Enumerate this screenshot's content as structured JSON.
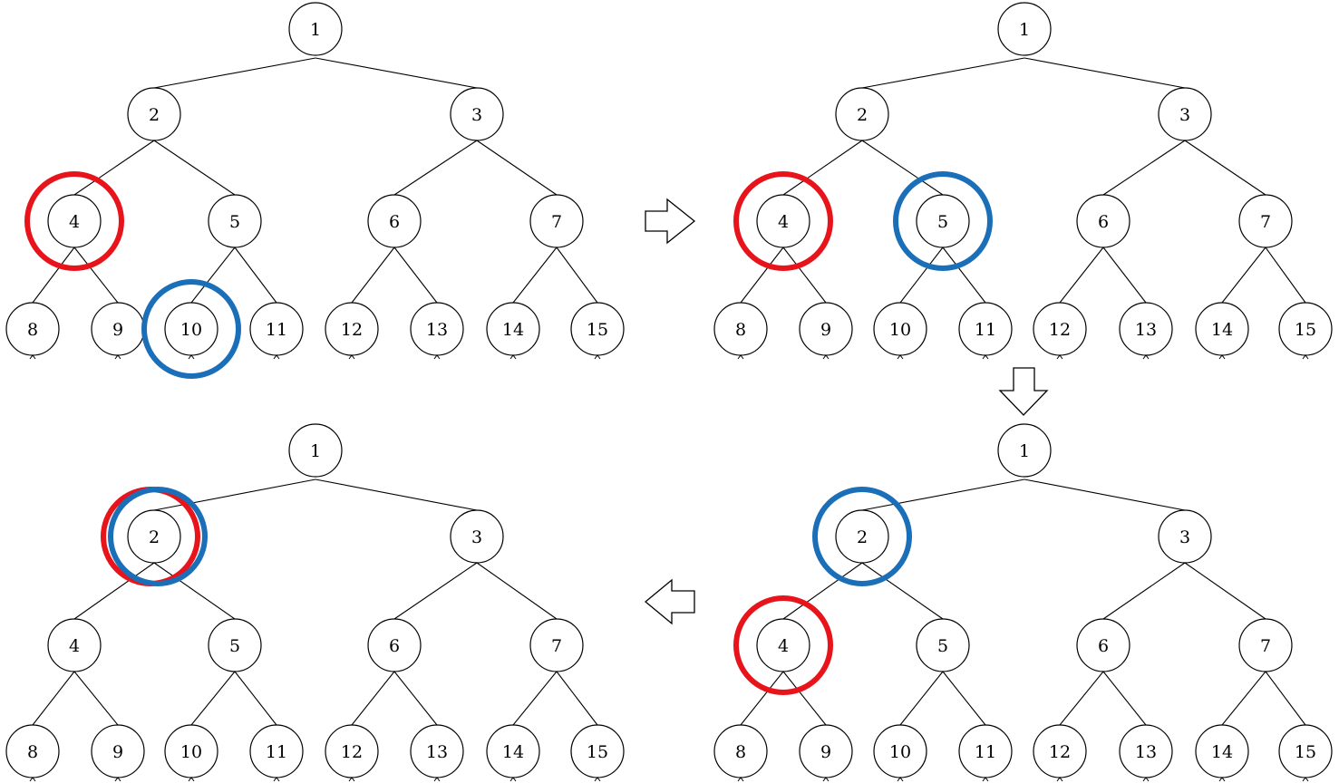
{
  "trees": [
    {
      "id": "top-left",
      "labels": [
        "1",
        "2",
        "3",
        "4",
        "5",
        "6",
        "7",
        "8",
        "9",
        "10",
        "11",
        "12",
        "13",
        "14",
        "15"
      ],
      "highlights": [
        {
          "node": "4",
          "color": "red"
        },
        {
          "node": "10",
          "color": "blue"
        }
      ]
    },
    {
      "id": "top-right",
      "labels": [
        "1",
        "2",
        "3",
        "4",
        "5",
        "6",
        "7",
        "8",
        "9",
        "10",
        "11",
        "12",
        "13",
        "14",
        "15"
      ],
      "highlights": [
        {
          "node": "4",
          "color": "red"
        },
        {
          "node": "5",
          "color": "blue"
        }
      ]
    },
    {
      "id": "bottom-right",
      "labels": [
        "1",
        "2",
        "3",
        "4",
        "5",
        "6",
        "7",
        "8",
        "9",
        "10",
        "11",
        "12",
        "13",
        "14",
        "15"
      ],
      "highlights": [
        {
          "node": "4",
          "color": "red"
        },
        {
          "node": "2",
          "color": "blue"
        }
      ]
    },
    {
      "id": "bottom-left",
      "labels": [
        "1",
        "2",
        "3",
        "4",
        "5",
        "6",
        "7",
        "8",
        "9",
        "10",
        "11",
        "12",
        "13",
        "14",
        "15"
      ],
      "highlights": [
        {
          "node": "2",
          "color": "red"
        },
        {
          "node": "2",
          "color": "blue"
        }
      ]
    }
  ],
  "colors": {
    "red": "#e8141b",
    "blue": "#1a6fb8",
    "line": "#000000",
    "background": "#ffffff"
  },
  "arrows": [
    {
      "from": "top-left",
      "to": "top-right",
      "direction": "right"
    },
    {
      "from": "top-right",
      "to": "bottom-right",
      "direction": "down"
    },
    {
      "from": "bottom-right",
      "to": "bottom-left",
      "direction": "left"
    }
  ]
}
